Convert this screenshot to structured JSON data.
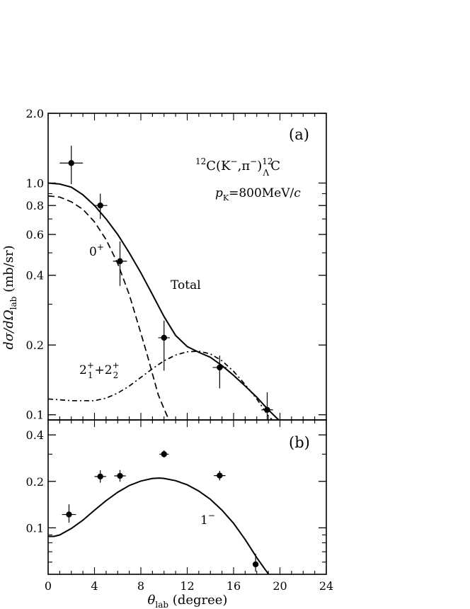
{
  "chart_data": [
    {
      "panel": "(a)",
      "type": "line",
      "y_scale": "log",
      "xlim": [
        0,
        24
      ],
      "ylim": [
        0.095,
        2.0
      ],
      "x_ticks": [
        0,
        4,
        8,
        12,
        16,
        20,
        24
      ],
      "y_ticks": [
        0.1,
        0.2,
        0.4,
        0.6,
        0.8,
        1.0,
        2.0
      ],
      "y_tick_labels": [
        "0.1",
        "0.2",
        "0.4",
        "0.6",
        "0.8",
        "1.0",
        "2.0"
      ],
      "ylabel_main": "dσ/dΩ",
      "ylabel_sub": "lab",
      "ylabel_unit": " (mb/sr)",
      "reaction": {
        "pre": "12",
        "main": "C(K",
        "sup1": "−",
        "mid": ",π",
        "sup2": "−",
        "close": ")",
        "sup3": "12",
        "sub3": "Λ",
        "end": "C"
      },
      "momentum": {
        "p": "p",
        "sub": "K",
        "rest": "=800MeV/",
        "c": "c"
      },
      "series": [
        {
          "name": "Total",
          "style": "solid",
          "x": [
            0,
            1,
            2,
            3,
            4,
            5,
            6,
            7,
            8,
            9,
            10,
            11,
            12,
            13,
            14,
            15,
            16,
            17,
            18,
            19,
            19.7,
            20
          ],
          "y": [
            1.0,
            0.99,
            0.96,
            0.89,
            0.8,
            0.7,
            0.6,
            0.5,
            0.41,
            0.33,
            0.265,
            0.22,
            0.197,
            0.186,
            0.177,
            0.163,
            0.148,
            0.133,
            0.119,
            0.105,
            0.097,
            0.094
          ]
        },
        {
          "name": "0+",
          "label_main": "0",
          "label_sup": "+",
          "style": "dashed",
          "x": [
            0,
            1,
            2,
            3,
            4,
            5,
            6,
            7,
            8,
            8.5,
            9,
            9.5,
            10,
            10.3,
            10.5
          ],
          "y": [
            0.88,
            0.87,
            0.83,
            0.77,
            0.68,
            0.57,
            0.45,
            0.33,
            0.225,
            0.185,
            0.15,
            0.122,
            0.106,
            0.098,
            0.094
          ]
        },
        {
          "name": "2+1+2+2",
          "label_parts": [
            "2",
            "+",
            "1",
            "+",
            "2",
            "+",
            "2"
          ],
          "style": "dashdot",
          "x": [
            0,
            1,
            2,
            3,
            4,
            5,
            6,
            7,
            8,
            9,
            10,
            11,
            12,
            13,
            14,
            15,
            16,
            17,
            18,
            19,
            19.5
          ],
          "y": [
            0.117,
            0.116,
            0.115,
            0.115,
            0.115,
            0.118,
            0.124,
            0.133,
            0.145,
            0.158,
            0.171,
            0.181,
            0.187,
            0.188,
            0.183,
            0.171,
            0.154,
            0.135,
            0.117,
            0.099,
            0.093
          ]
        }
      ],
      "points": [
        {
          "x": 2.0,
          "y": 1.22,
          "xerr": 1.0,
          "ylo": 0.99,
          "yhi": 1.45
        },
        {
          "x": 4.5,
          "y": 0.8,
          "xerr": 0.6,
          "ylo": 0.7,
          "yhi": 0.9
        },
        {
          "x": 6.2,
          "y": 0.46,
          "xerr": 0.6,
          "ylo": 0.36,
          "yhi": 0.56
        },
        {
          "x": 10.0,
          "y": 0.215,
          "xerr": 0.5,
          "ylo": 0.155,
          "yhi": 0.255
        },
        {
          "x": 14.8,
          "y": 0.16,
          "xerr": 0.6,
          "ylo": 0.13,
          "yhi": 0.18
        },
        {
          "x": 18.9,
          "y": 0.105,
          "xerr": 0.5,
          "ylo": 0.095,
          "yhi": 0.125
        }
      ]
    },
    {
      "panel": "(b)",
      "type": "line",
      "y_scale": "log",
      "xlim": [
        0,
        24
      ],
      "ylim": [
        0.05,
        0.5
      ],
      "x_ticks": [
        0,
        4,
        8,
        12,
        16,
        20,
        24
      ],
      "y_ticks": [
        0.1,
        0.2,
        0.4
      ],
      "y_tick_labels": [
        "0.1",
        "0.2",
        "0.4"
      ],
      "xlabel_main": "θ",
      "xlabel_sub": "lab",
      "xlabel_unit": " (degree)",
      "series": [
        {
          "name": "1−",
          "label_main": "1",
          "label_sup": "−",
          "style": "solid",
          "x": [
            0,
            0.5,
            1,
            2,
            3,
            4,
            5,
            6,
            7,
            8,
            9,
            9.6,
            10,
            11,
            12,
            13,
            14,
            15,
            16,
            17,
            18,
            18.7,
            19.3
          ],
          "y": [
            0.088,
            0.088,
            0.09,
            0.099,
            0.112,
            0.13,
            0.15,
            0.17,
            0.188,
            0.201,
            0.209,
            0.21,
            0.209,
            0.202,
            0.19,
            0.173,
            0.153,
            0.13,
            0.107,
            0.084,
            0.064,
            0.054,
            0.047
          ]
        }
      ],
      "points": [
        {
          "x": 1.8,
          "y": 0.122,
          "xerr": 0.6,
          "ylo": 0.108,
          "yhi": 0.142
        },
        {
          "x": 4.5,
          "y": 0.215,
          "xerr": 0.5,
          "ylo": 0.196,
          "yhi": 0.236
        },
        {
          "x": 6.2,
          "y": 0.217,
          "xerr": 0.5,
          "ylo": 0.199,
          "yhi": 0.237
        },
        {
          "x": 10.0,
          "y": 0.3,
          "xerr": 0.4,
          "ylo": 0.286,
          "yhi": 0.318
        },
        {
          "x": 14.8,
          "y": 0.218,
          "xerr": 0.5,
          "ylo": 0.203,
          "yhi": 0.234
        },
        {
          "x": 17.9,
          "y": 0.058,
          "xerr": 0.2,
          "ylo": 0.052,
          "yhi": 0.068
        }
      ]
    }
  ]
}
